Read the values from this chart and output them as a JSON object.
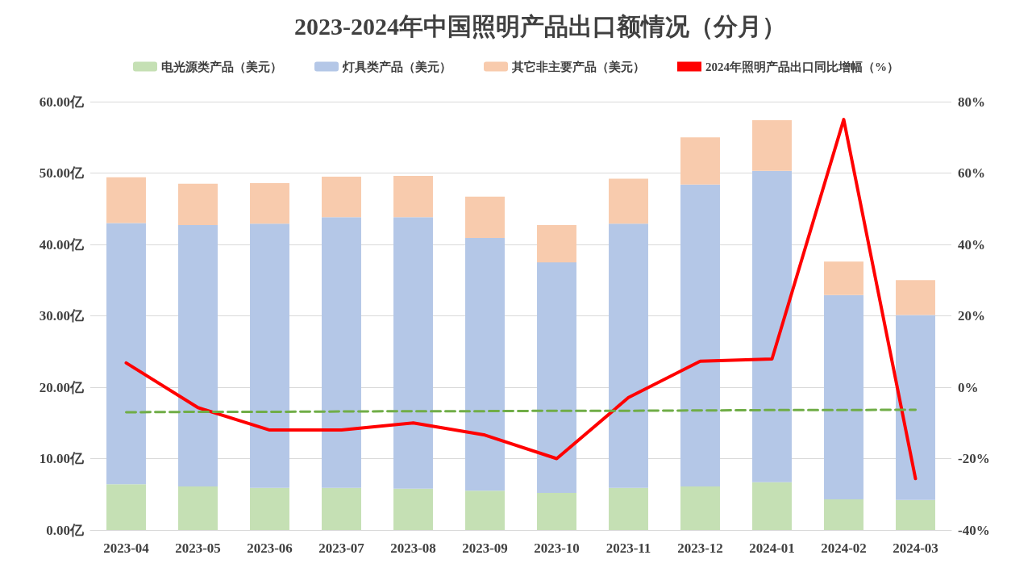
{
  "chart_data": {
    "type": "bar",
    "title": "2023-2024年中国照明产品出口额情况（分月）",
    "categories": [
      "2023-04",
      "2023-05",
      "2023-06",
      "2023-07",
      "2023-08",
      "2023-09",
      "2023-10",
      "2023-11",
      "2023-12",
      "2024-01",
      "2024-02",
      "2024-03"
    ],
    "stacked": true,
    "series": [
      {
        "name": "电光源类产品（美元）",
        "color": "#c5e0b4",
        "values": [
          6.4,
          6.1,
          5.9,
          5.9,
          5.8,
          5.5,
          5.2,
          5.9,
          6.1,
          6.7,
          4.3,
          4.2
        ]
      },
      {
        "name": "灯具类产品（美元）",
        "color": "#b4c7e7",
        "values": [
          36.6,
          36.6,
          37.0,
          37.9,
          38.0,
          35.4,
          32.3,
          37.0,
          42.3,
          43.6,
          28.6,
          25.9
        ]
      },
      {
        "name": "其它非主要产品（美元）",
        "color": "#f8cbad",
        "values": [
          6.4,
          5.8,
          5.7,
          5.7,
          5.8,
          5.8,
          5.2,
          6.3,
          6.6,
          7.1,
          4.7,
          4.9
        ]
      },
      {
        "name": "2024年照明产品出口同比增幅（%）",
        "type": "line",
        "axis": "y2",
        "color": "#ff0000",
        "line_style": "solid",
        "values": [
          6.8,
          -5.7,
          -12,
          -12,
          -10,
          -13.4,
          -20,
          -2.9,
          7.3,
          7.9,
          75,
          -25.6
        ]
      },
      {
        "type": "line",
        "axis": "y2",
        "color": "#70ad47",
        "line_style": "dashed",
        "values": [
          -7,
          -6.9,
          -6.9,
          -6.8,
          -6.7,
          -6.7,
          -6.6,
          -6.6,
          -6.5,
          -6.4,
          -6.4,
          -6.3
        ]
      }
    ],
    "ylim": [
      0,
      60
    ],
    "yticks": [
      {
        "value": 0,
        "label": "0.00亿"
      },
      {
        "value": 10,
        "label": "10.00亿"
      },
      {
        "value": 20,
        "label": "20.00亿"
      },
      {
        "value": 30,
        "label": "30.00亿"
      },
      {
        "value": 40,
        "label": "40.00亿"
      },
      {
        "value": 50,
        "label": "50.00亿"
      },
      {
        "value": 60,
        "label": "60.00亿"
      }
    ],
    "y2lim": [
      -40,
      80
    ],
    "y2ticks": [
      {
        "value": -40,
        "label": "-40%"
      },
      {
        "value": -20,
        "label": "-20%"
      },
      {
        "value": 0,
        "label": "0%"
      },
      {
        "value": 20,
        "label": "20%"
      },
      {
        "value": 40,
        "label": "40%"
      },
      {
        "value": 60,
        "label": "60%"
      },
      {
        "value": 80,
        "label": "80%"
      }
    ],
    "grid": "y",
    "legend": "top",
    "marker": "none"
  }
}
